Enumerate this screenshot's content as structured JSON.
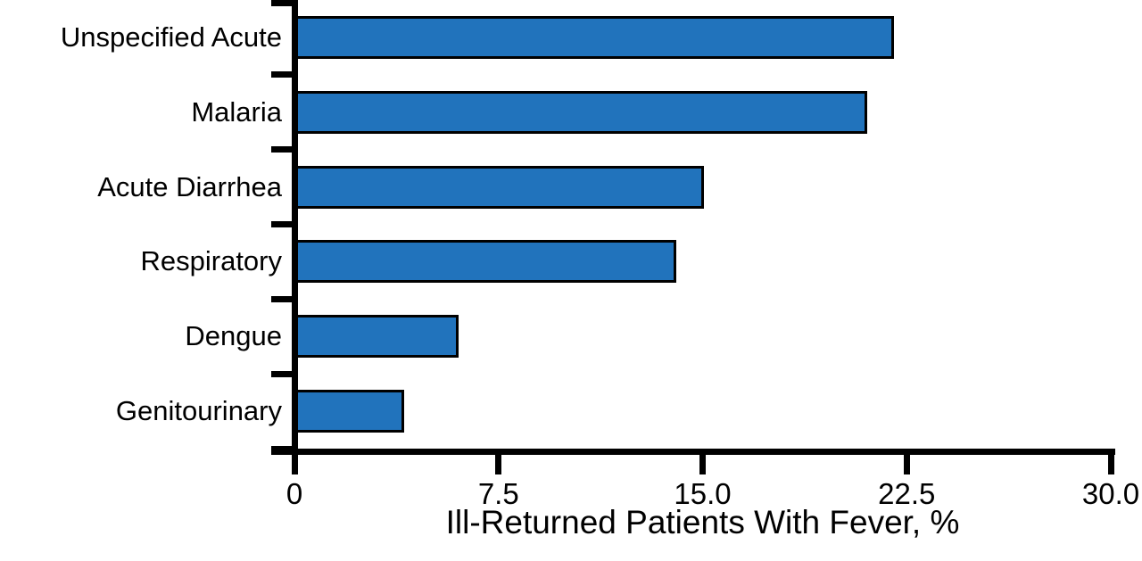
{
  "figure": {
    "background": "#ffffff"
  },
  "chart_data": {
    "type": "bar",
    "orientation": "horizontal",
    "categories": [
      "Unspecified Acute",
      "Malaria",
      "Acute Diarrhea",
      "Respiratory",
      "Dengue",
      "Genitourinary"
    ],
    "values": [
      22,
      21,
      15,
      14,
      6,
      4
    ],
    "title": "",
    "xlabel": "Ill-Returned Patients With Fever, %",
    "ylabel": "",
    "xlim": [
      0,
      30
    ],
    "xticks": [
      0,
      7.5,
      15,
      22.5,
      30
    ],
    "xtick_labels": [
      "0",
      "7.5",
      "15.0",
      "22.5",
      "30.0"
    ],
    "grid": false,
    "legend": null,
    "bar_color": "#2173BC",
    "bar_border_color": "#000000",
    "axis_color": "#000000"
  }
}
